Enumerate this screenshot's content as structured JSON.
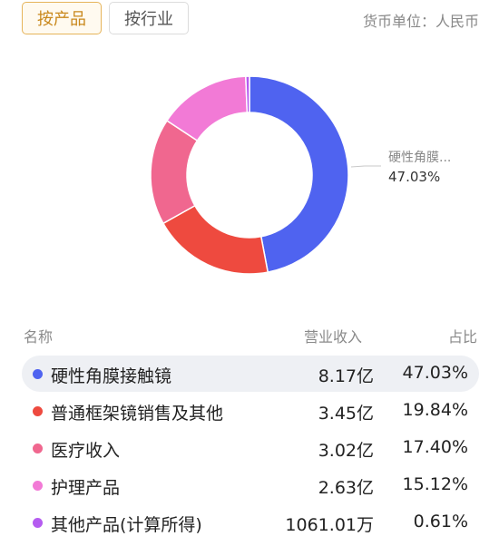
{
  "tabs": [
    {
      "label": "按产品",
      "active": true
    },
    {
      "label": "按行业",
      "active": false
    }
  ],
  "currency_label": "货币单位：人民币",
  "table_header": {
    "name": "名称",
    "revenue": "营业收入",
    "share": "占比"
  },
  "callout": {
    "name": "硬性角膜...",
    "percent": "47.03%"
  },
  "chart_data": {
    "type": "pie",
    "donut": true,
    "categories": [
      "硬性角膜接触镜",
      "普通框架镜销售及其他",
      "医疗收入",
      "护理产品",
      "其他产品(计算所得)"
    ],
    "values": [
      47.03,
      19.84,
      17.4,
      15.12,
      0.61
    ],
    "colors": [
      "#4f63f0",
      "#ee4a3f",
      "#f0678f",
      "#f27ad6",
      "#b55cf0"
    ]
  },
  "rows": [
    {
      "name": "硬性角膜接触镜",
      "revenue": "8.17亿",
      "share": "47.03%",
      "color": "#4f63f0"
    },
    {
      "name": "普通框架镜销售及其他",
      "revenue": "3.45亿",
      "share": "19.84%",
      "color": "#ee4a3f"
    },
    {
      "name": "医疗收入",
      "revenue": "3.02亿",
      "share": "17.40%",
      "color": "#f0678f"
    },
    {
      "name": "护理产品",
      "revenue": "2.63亿",
      "share": "15.12%",
      "color": "#f27ad6"
    },
    {
      "name": "其他产品(计算所得)",
      "revenue": "1061.01万",
      "share": "0.61%",
      "color": "#b55cf0"
    }
  ]
}
